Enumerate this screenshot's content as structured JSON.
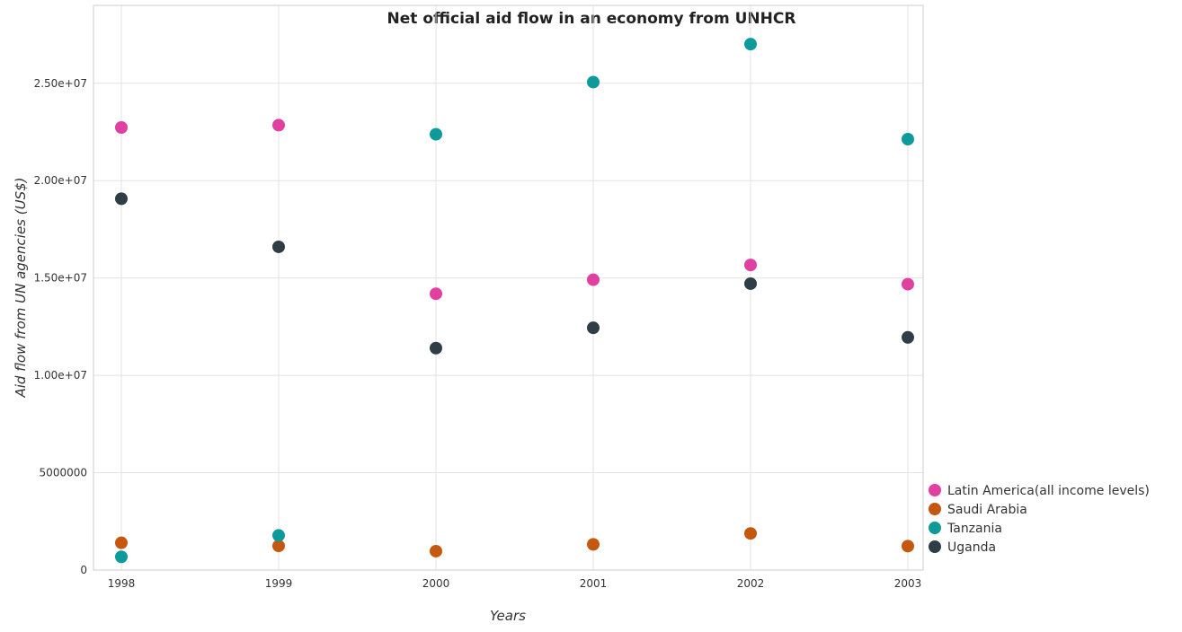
{
  "chart_data": {
    "type": "scatter",
    "title": "Net official aid flow in an economy from UNHCR",
    "xlabel": "Years",
    "ylabel": "Aid flow from UN agencies (US$)",
    "categories": [
      "1998",
      "1999",
      "2000",
      "2001",
      "2002",
      "2003"
    ],
    "ylim": [
      0,
      29000000
    ],
    "yticks": [
      0,
      5000000,
      10000000,
      15000000,
      20000000,
      25000000
    ],
    "ytick_labels": [
      "0",
      "5000000",
      "1.00e+07",
      "1.50e+07",
      "2.00e+07",
      "2.50e+07"
    ],
    "grid": true,
    "legend_position": "bottom-right",
    "series": [
      {
        "name": "Latin America(all income levels)",
        "color": "#e0409f",
        "values": [
          22730000,
          22850000,
          14190000,
          14910000,
          15670000,
          14680000
        ]
      },
      {
        "name": "Saudi Arabia",
        "color": "#c4580f",
        "values": [
          1400000,
          1240000,
          970000,
          1320000,
          1880000,
          1230000
        ]
      },
      {
        "name": "Tanzania",
        "color": "#0e9a9a",
        "values": [
          680000,
          1780000,
          22380000,
          25060000,
          27010000,
          22130000
        ]
      },
      {
        "name": "Uganda",
        "color": "#2f3e46",
        "values": [
          19070000,
          16600000,
          11400000,
          12440000,
          14710000,
          11950000
        ]
      }
    ]
  }
}
